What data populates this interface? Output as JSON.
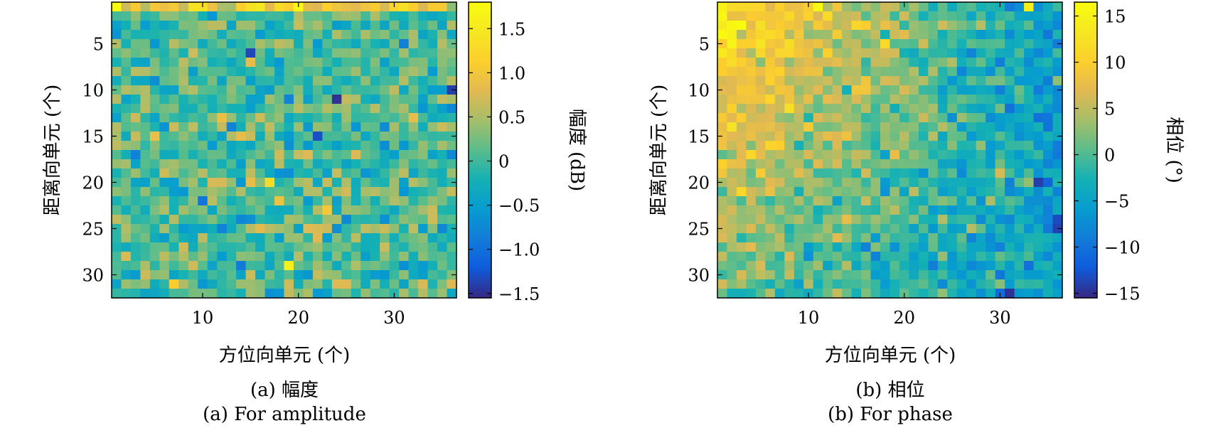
{
  "chart_data": [
    {
      "type": "heatmap",
      "title": "",
      "xlabel": "方位向单元 (个)",
      "ylabel": "距离向单元 (个)",
      "xlim": [
        0.5,
        36.5
      ],
      "ylim": [
        0.5,
        32.5
      ],
      "x_ticks": [
        10,
        20,
        30
      ],
      "y_ticks": [
        5,
        10,
        15,
        20,
        25,
        30
      ],
      "y_reversed": true,
      "colormap": "parula",
      "colorbar": {
        "label": "幅度 (dB)",
        "range": [
          -1.55,
          1.8
        ],
        "ticks": [
          1.5,
          1.0,
          0.5,
          0,
          -0.5,
          -1.0,
          -1.5
        ],
        "tick_labels": [
          "1.5",
          "1.0",
          "0.5",
          "0",
          "−0.5",
          "−1.0",
          "−1.5"
        ]
      },
      "grid_size": [
        32,
        36
      ],
      "value_mean": 0.05,
      "value_spread": 0.35,
      "notable_values": [
        {
          "x": 24,
          "y": 11,
          "value": -1.5
        },
        {
          "x": 22,
          "y": 15,
          "value": -1.3
        },
        {
          "x": 19,
          "y": 29,
          "value": 1.6
        },
        {
          "x": 20,
          "y": 1,
          "value": 1.75
        },
        {
          "x": 17,
          "y": 20,
          "value": 1.3
        }
      ],
      "captions": [
        "(a) 幅度",
        "(a) For amplitude"
      ]
    },
    {
      "type": "heatmap",
      "title": "",
      "xlabel": "方位向单元 (个)",
      "ylabel": "距离向单元 (个)",
      "xlim": [
        0.5,
        36.5
      ],
      "ylim": [
        0.5,
        32.5
      ],
      "x_ticks": [
        10,
        20,
        30
      ],
      "y_ticks": [
        5,
        10,
        15,
        20,
        25,
        30
      ],
      "y_reversed": true,
      "colormap": "parula",
      "colorbar": {
        "label": "相位 (°)",
        "range": [
          -15.5,
          16.5
        ],
        "ticks": [
          15,
          10,
          5,
          0,
          -5,
          -10,
          -15
        ],
        "tick_labels": [
          "15",
          "10",
          "5",
          "0",
          "−5",
          "−10",
          "−15"
        ]
      },
      "grid_size": [
        32,
        36
      ],
      "value_trend": "high (+10 to +16) toward top-left, low (−10 to −15) toward bottom-right",
      "notable_values": [
        {
          "x": 11,
          "y": 1,
          "value": 16
        },
        {
          "x": 33,
          "y": 1,
          "value": 15
        },
        {
          "x": 31,
          "y": 32,
          "value": -15
        },
        {
          "x": 36,
          "y": 25,
          "value": -14
        }
      ],
      "captions": [
        "(b) 相位",
        "(b) For phase"
      ]
    }
  ]
}
